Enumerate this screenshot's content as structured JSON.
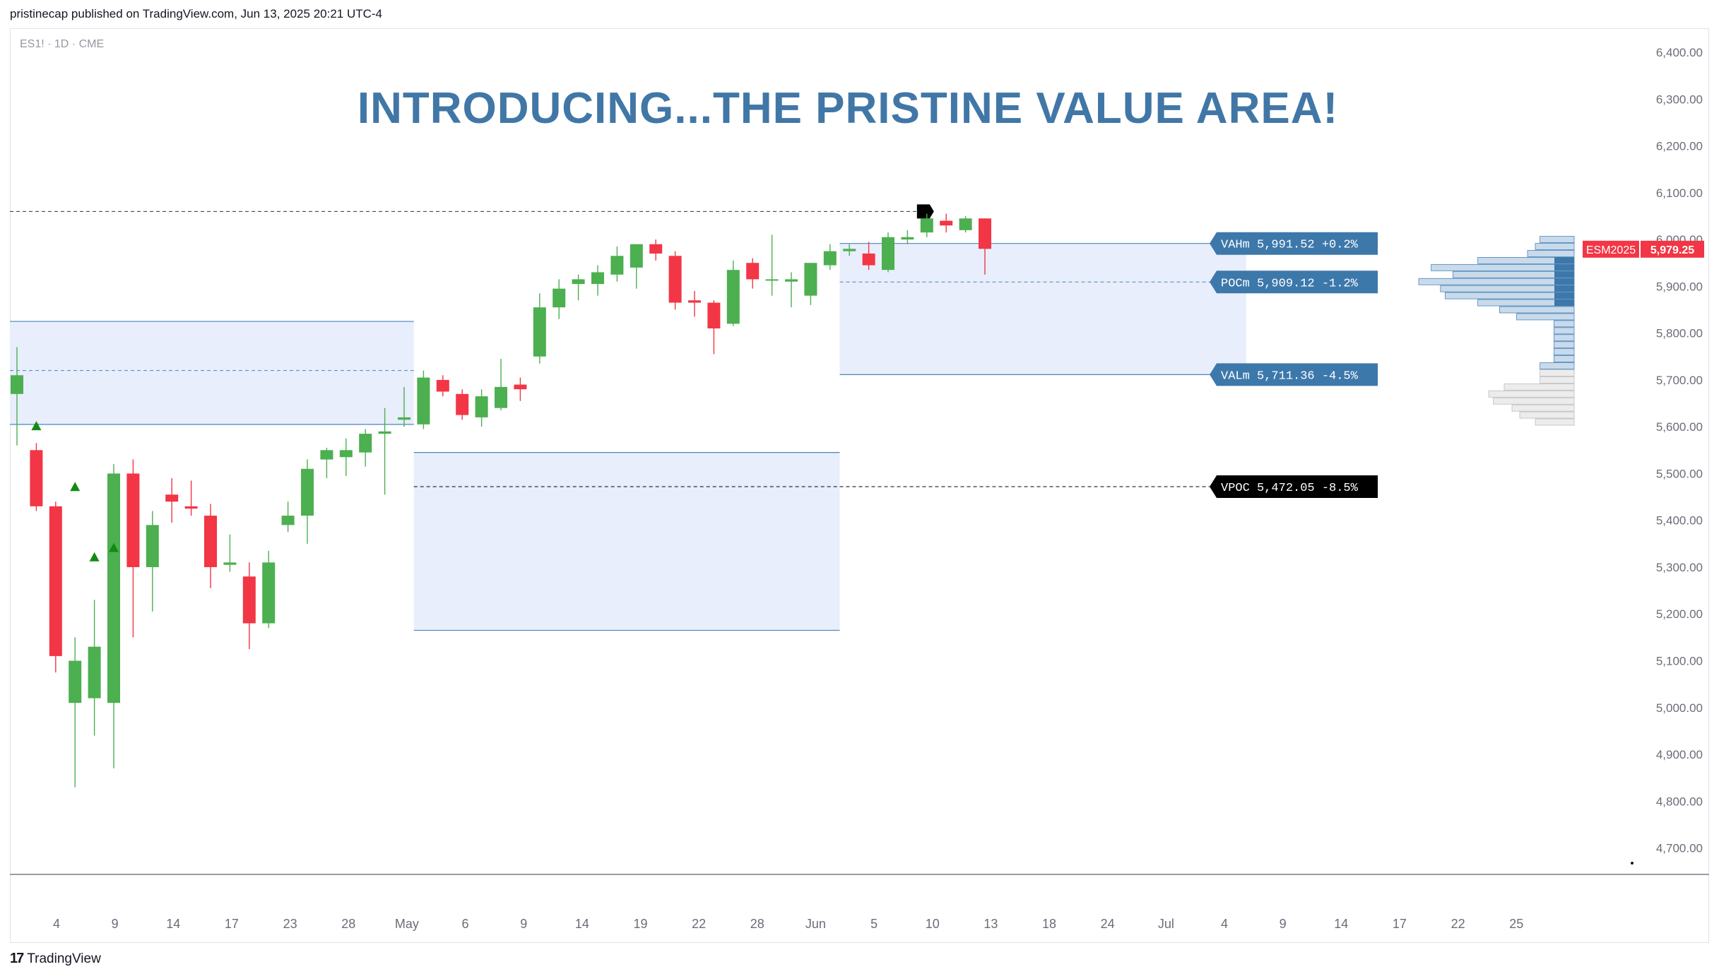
{
  "header": {
    "published_line": "pristinecap published on TradingView.com, Jun 13, 2025 20:21 UTC-4",
    "symbol_line": "ES1! · 1D · CME"
  },
  "footer": {
    "brand": "TradingView",
    "brand_mark": "17"
  },
  "colors": {
    "up": "#4caf50",
    "down": "#f23645",
    "accent": "#4177a6",
    "zone_fill": "#e8eefb",
    "zone_border": "#4a86b8",
    "vpoc": "#000000",
    "price_tag": "#f23645"
  },
  "chart_data": {
    "type": "candlestick",
    "title": "INTRODUCING...THE PRISTINE VALUE AREA!",
    "ylim": [
      4650,
      6450
    ],
    "y_ticks": [
      "6,400.00",
      "6,300.00",
      "6,200.00",
      "6,100.00",
      "6,000.00",
      "5,900.00",
      "5,800.00",
      "5,700.00",
      "5,600.00",
      "5,500.00",
      "5,400.00",
      "5,300.00",
      "5,200.00",
      "5,100.00",
      "5,000.00",
      "4,900.00",
      "4,800.00",
      "4,700.00"
    ],
    "y_tick_values": [
      6400,
      6300,
      6200,
      6100,
      6000,
      5900,
      5800,
      5700,
      5600,
      5500,
      5400,
      5300,
      5200,
      5100,
      5000,
      4900,
      4800,
      4700
    ],
    "x_ticks": [
      "4",
      "9",
      "14",
      "17",
      "23",
      "28",
      "May",
      "6",
      "9",
      "14",
      "19",
      "22",
      "28",
      "Jun",
      "5",
      "10",
      "13",
      "18",
      "24",
      "Jul",
      "4",
      "9",
      "14",
      "17",
      "22",
      "25"
    ],
    "candles": [
      {
        "o": 5670,
        "h": 5770,
        "l": 5560,
        "c": 5710
      },
      {
        "o": 5550,
        "h": 5565,
        "l": 5420,
        "c": 5430
      },
      {
        "o": 5430,
        "h": 5440,
        "l": 5075,
        "c": 5110
      },
      {
        "o": 5010,
        "h": 5150,
        "l": 4830,
        "c": 5100
      },
      {
        "o": 5020,
        "h": 5230,
        "l": 4940,
        "c": 5130
      },
      {
        "o": 5010,
        "h": 5520,
        "l": 4870,
        "c": 5500
      },
      {
        "o": 5500,
        "h": 5530,
        "l": 5150,
        "c": 5300
      },
      {
        "o": 5300,
        "h": 5420,
        "l": 5205,
        "c": 5390
      },
      {
        "o": 5455,
        "h": 5490,
        "l": 5395,
        "c": 5440
      },
      {
        "o": 5430,
        "h": 5485,
        "l": 5410,
        "c": 5425
      },
      {
        "o": 5410,
        "h": 5435,
        "l": 5255,
        "c": 5300
      },
      {
        "o": 5305,
        "h": 5370,
        "l": 5290,
        "c": 5310
      },
      {
        "o": 5280,
        "h": 5310,
        "l": 5125,
        "c": 5180
      },
      {
        "o": 5180,
        "h": 5335,
        "l": 5170,
        "c": 5310
      },
      {
        "o": 5390,
        "h": 5440,
        "l": 5375,
        "c": 5410
      },
      {
        "o": 5410,
        "h": 5530,
        "l": 5350,
        "c": 5510
      },
      {
        "o": 5530,
        "h": 5555,
        "l": 5490,
        "c": 5550
      },
      {
        "o": 5535,
        "h": 5575,
        "l": 5495,
        "c": 5550
      },
      {
        "o": 5545,
        "h": 5595,
        "l": 5515,
        "c": 5585
      },
      {
        "o": 5585,
        "h": 5640,
        "l": 5455,
        "c": 5590
      },
      {
        "o": 5615,
        "h": 5685,
        "l": 5600,
        "c": 5620
      },
      {
        "o": 5605,
        "h": 5720,
        "l": 5595,
        "c": 5705
      },
      {
        "o": 5700,
        "h": 5710,
        "l": 5665,
        "c": 5675
      },
      {
        "o": 5670,
        "h": 5680,
        "l": 5615,
        "c": 5625
      },
      {
        "o": 5620,
        "h": 5680,
        "l": 5600,
        "c": 5665
      },
      {
        "o": 5640,
        "h": 5745,
        "l": 5635,
        "c": 5685
      },
      {
        "o": 5690,
        "h": 5705,
        "l": 5655,
        "c": 5680
      },
      {
        "o": 5750,
        "h": 5885,
        "l": 5735,
        "c": 5855
      },
      {
        "o": 5855,
        "h": 5915,
        "l": 5830,
        "c": 5895
      },
      {
        "o": 5905,
        "h": 5925,
        "l": 5870,
        "c": 5915
      },
      {
        "o": 5905,
        "h": 5945,
        "l": 5880,
        "c": 5930
      },
      {
        "o": 5925,
        "h": 5985,
        "l": 5910,
        "c": 5965
      },
      {
        "o": 5940,
        "h": 5990,
        "l": 5895,
        "c": 5990
      },
      {
        "o": 5990,
        "h": 6000,
        "l": 5955,
        "c": 5970
      },
      {
        "o": 5965,
        "h": 5975,
        "l": 5850,
        "c": 5865
      },
      {
        "o": 5870,
        "h": 5890,
        "l": 5835,
        "c": 5865
      },
      {
        "o": 5865,
        "h": 5870,
        "l": 5755,
        "c": 5810
      },
      {
        "o": 5820,
        "h": 5955,
        "l": 5815,
        "c": 5935
      },
      {
        "o": 5950,
        "h": 5960,
        "l": 5895,
        "c": 5915
      },
      {
        "o": 5915,
        "h": 6010,
        "l": 5880,
        "c": 5915
      },
      {
        "o": 5910,
        "h": 5930,
        "l": 5855,
        "c": 5915
      },
      {
        "o": 5880,
        "h": 5945,
        "l": 5860,
        "c": 5950
      },
      {
        "o": 5945,
        "h": 5990,
        "l": 5935,
        "c": 5975
      },
      {
        "o": 5975,
        "h": 5990,
        "l": 5965,
        "c": 5980
      },
      {
        "o": 5970,
        "h": 5995,
        "l": 5935,
        "c": 5945
      },
      {
        "o": 5935,
        "h": 6015,
        "l": 5930,
        "c": 6005
      },
      {
        "o": 6000,
        "h": 6020,
        "l": 5990,
        "c": 6005
      },
      {
        "o": 6015,
        "h": 6055,
        "l": 6005,
        "c": 6045
      },
      {
        "o": 6040,
        "h": 6055,
        "l": 6015,
        "c": 6030
      },
      {
        "o": 6020,
        "h": 6050,
        "l": 6015,
        "c": 6045
      },
      {
        "o": 6045,
        "h": 6045,
        "l": 5925,
        "c": 5980
      }
    ],
    "signals": [
      {
        "candle": 1,
        "price": 5600
      },
      {
        "candle": 3,
        "price": 5470
      },
      {
        "candle": 4,
        "price": 5320
      },
      {
        "candle": 5,
        "price": 5340
      }
    ],
    "zones": [
      {
        "name": "april",
        "x_from": -0.5,
        "x_to": 20.5,
        "top": 5825,
        "bottom": 5605,
        "mid": 5720
      },
      {
        "name": "may",
        "x_from": 20.5,
        "x_to": 42.5,
        "top": 5545,
        "bottom": 5165,
        "mid": 5472.05
      },
      {
        "name": "june",
        "x_from": 42.5,
        "x_to": 63.5,
        "top": 5991.52,
        "bottom": 5711.36,
        "mid": 5909.12
      }
    ],
    "top_dashed_level": 6060,
    "level_labels": [
      {
        "name": "vah",
        "text": "VAHm 5,991.52 +0.2%",
        "price": 5991.52,
        "style": "blue"
      },
      {
        "name": "poc",
        "text": "POCm 5,909.12 -1.2%",
        "price": 5909.12,
        "style": "blue"
      },
      {
        "name": "val",
        "text": "VALm 5,711.36 -4.5%",
        "price": 5711.36,
        "style": "blue"
      },
      {
        "name": "vpoc",
        "text": "VPOC 5,472.05 -8.5%",
        "price": 5472.05,
        "style": "black"
      }
    ],
    "current_price": {
      "symbol": "ESM2025",
      "value": "5,979.25",
      "price": 5979.25
    },
    "volume_profile": [
      {
        "p": 6000,
        "v": 0.22,
        "s": "b"
      },
      {
        "p": 5985,
        "v": 0.25,
        "s": "b"
      },
      {
        "p": 5970,
        "v": 0.3,
        "s": "b"
      },
      {
        "p": 5955,
        "v": 0.62,
        "s": "b"
      },
      {
        "p": 5940,
        "v": 0.92,
        "s": "b"
      },
      {
        "p": 5925,
        "v": 0.78,
        "s": "b"
      },
      {
        "p": 5910,
        "v": 1.0,
        "s": "b"
      },
      {
        "p": 5895,
        "v": 0.86,
        "s": "b"
      },
      {
        "p": 5880,
        "v": 0.83,
        "s": "b"
      },
      {
        "p": 5865,
        "v": 0.62,
        "s": "b"
      },
      {
        "p": 5850,
        "v": 0.48,
        "s": "b"
      },
      {
        "p": 5835,
        "v": 0.37,
        "s": "b"
      },
      {
        "p": 5820,
        "v": 0.13,
        "s": "b"
      },
      {
        "p": 5805,
        "v": 0.13,
        "s": "b"
      },
      {
        "p": 5790,
        "v": 0.13,
        "s": "b"
      },
      {
        "p": 5775,
        "v": 0.13,
        "s": "b"
      },
      {
        "p": 5760,
        "v": 0.13,
        "s": "b"
      },
      {
        "p": 5745,
        "v": 0.13,
        "s": "b"
      },
      {
        "p": 5730,
        "v": 0.22,
        "s": "b"
      },
      {
        "p": 5715,
        "v": 0.22,
        "s": "g"
      },
      {
        "p": 5700,
        "v": 0.22,
        "s": "g"
      },
      {
        "p": 5685,
        "v": 0.45,
        "s": "g"
      },
      {
        "p": 5670,
        "v": 0.55,
        "s": "g"
      },
      {
        "p": 5655,
        "v": 0.52,
        "s": "g"
      },
      {
        "p": 5640,
        "v": 0.4,
        "s": "g"
      },
      {
        "p": 5625,
        "v": 0.35,
        "s": "g"
      },
      {
        "p": 5610,
        "v": 0.25,
        "s": "g"
      }
    ]
  }
}
